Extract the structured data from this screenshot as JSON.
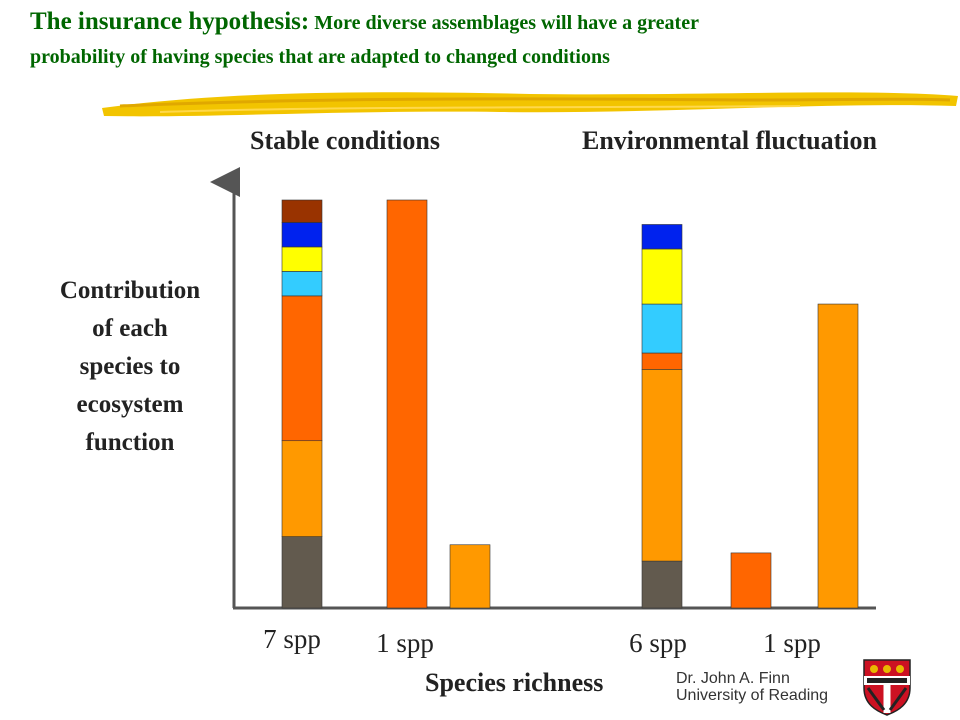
{
  "title": {
    "lead": "The insurance hypothesis:",
    "rest": " More diverse assemblages will have a greater",
    "line2": "probability of having species that are adapted to changed conditions"
  },
  "headings": {
    "stable": "Stable conditions",
    "fluctuation": "Environmental fluctuation"
  },
  "ylabel_lines": [
    "Contribution",
    "of each",
    "species to",
    "ecosystem",
    "function"
  ],
  "xlabel": "Species richness",
  "credit": {
    "name": "Dr. John A. Finn",
    "institution": "University of Reading"
  },
  "colors": {
    "title": "#006600",
    "brush": "#f2c400",
    "axis": "#555555",
    "crest_red": "#cc1122",
    "crest_gold": "#e8b800"
  },
  "chart_data": {
    "type": "bar",
    "stacked": true,
    "ylim": [
      0,
      100
    ],
    "categories": [
      "7 spp",
      "1 spp",
      "1 spp",
      "6 spp",
      "1 spp",
      "1 spp"
    ],
    "category_labels_shown": [
      "7 spp",
      "1 spp",
      "",
      "6 spp",
      "1 spp",
      ""
    ],
    "bars": [
      {
        "category": "7 spp",
        "segments": [
          {
            "color": "#625a4e",
            "value": 17.5
          },
          {
            "color": "#ff9900",
            "value": 23.5
          },
          {
            "color": "#ff6600",
            "value": 35.5
          },
          {
            "color": "#33ccff",
            "value": 6
          },
          {
            "color": "#ffff00",
            "value": 6
          },
          {
            "color": "#0022ee",
            "value": 6
          },
          {
            "color": "#993300",
            "value": 5.5
          }
        ]
      },
      {
        "category": "1 spp",
        "segments": [
          {
            "color": "#ff6600",
            "value": 100
          }
        ]
      },
      {
        "category": "1 spp",
        "segments": [
          {
            "color": "#ff9900",
            "value": 15.5
          }
        ]
      },
      {
        "category": "6 spp",
        "segments": [
          {
            "color": "#625a4e",
            "value": 11.5
          },
          {
            "color": "#ff9900",
            "value": 47
          },
          {
            "color": "#ff6600",
            "value": 4
          },
          {
            "color": "#33ccff",
            "value": 12
          },
          {
            "color": "#ffff00",
            "value": 13.5
          },
          {
            "color": "#0022ee",
            "value": 6
          }
        ]
      },
      {
        "category": "1 spp",
        "segments": [
          {
            "color": "#ff6600",
            "value": 13.5
          }
        ]
      },
      {
        "category": "1 spp",
        "segments": [
          {
            "color": "#ff9900",
            "value": 74.5
          }
        ]
      }
    ]
  }
}
